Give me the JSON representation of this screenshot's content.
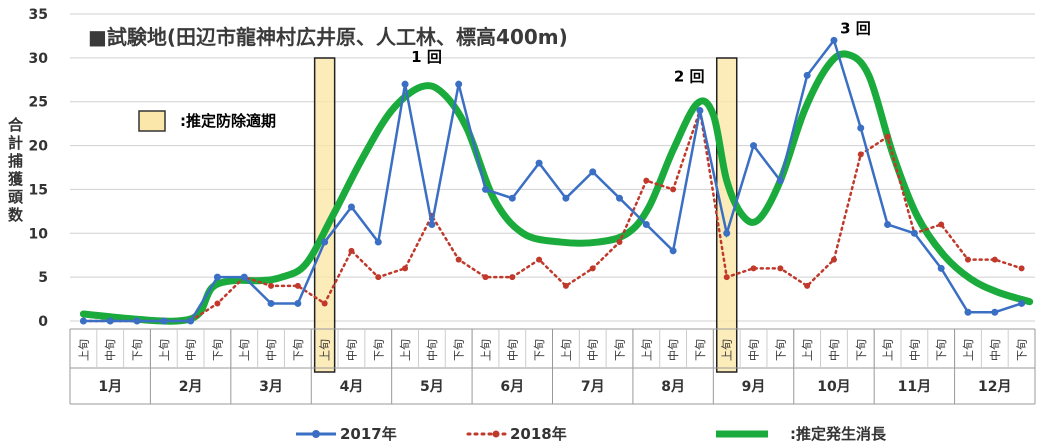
{
  "chart_data": {
    "type": "line",
    "title": "■試験地(田辺市龍神村広井原、人工林、標高400m)",
    "ylabel_chars": [
      "合",
      "計",
      "捕",
      "獲",
      "頭",
      "数"
    ],
    "ylim": [
      0,
      35
    ],
    "yticks": [
      "0",
      "5",
      "10",
      "15",
      "20",
      "25",
      "30",
      "35"
    ],
    "months": [
      "1月",
      "2月",
      "3月",
      "4月",
      "5月",
      "6月",
      "7月",
      "8月",
      "9月",
      "10月",
      "11月",
      "12月"
    ],
    "sub_labels": [
      "上旬",
      "中旬",
      "下旬"
    ],
    "series": [
      {
        "name": "2017年",
        "color": "#3a6fc4",
        "style": "solid-dot",
        "values": [
          0,
          0,
          0,
          0,
          0,
          5,
          5,
          2,
          2,
          9,
          13,
          9,
          27,
          11,
          27,
          15,
          14,
          18,
          14,
          17,
          14,
          11,
          8,
          24,
          10,
          20,
          16,
          28,
          32,
          22,
          11,
          10,
          6,
          1,
          1,
          2
        ]
      },
      {
        "name": "2018年",
        "color": "#c0392b",
        "style": "dotted",
        "values": [
          0,
          0,
          0,
          0,
          0,
          2,
          5,
          4,
          4,
          2,
          8,
          5,
          6,
          12,
          7,
          5,
          5,
          7,
          4,
          6,
          9,
          16,
          15,
          24,
          5,
          6,
          6,
          4,
          7,
          19,
          21,
          10,
          11,
          7,
          7,
          6
        ]
      },
      {
        "name": "推定発生消長",
        "color": "#1aab3c",
        "style": "thick",
        "points": [
          [
            0,
            0.8
          ],
          [
            2,
            0.2
          ],
          [
            3.5,
            0.0
          ],
          [
            4.3,
            0.8
          ],
          [
            4.8,
            3.8
          ],
          [
            5.6,
            4.6
          ],
          [
            6.6,
            4.6
          ],
          [
            7.4,
            5.0
          ],
          [
            8.3,
            6.5
          ],
          [
            9.3,
            12.0
          ],
          [
            10.4,
            18.5
          ],
          [
            11.5,
            24.0
          ],
          [
            12.6,
            26.7
          ],
          [
            13.4,
            26.0
          ],
          [
            14.3,
            22.0
          ],
          [
            15.3,
            14.0
          ],
          [
            16.4,
            10.0
          ],
          [
            17.8,
            9.0
          ],
          [
            19.2,
            9.0
          ],
          [
            20.3,
            10.0
          ],
          [
            21.1,
            13.0
          ],
          [
            22.0,
            19.5
          ],
          [
            22.9,
            24.8
          ],
          [
            23.5,
            23.5
          ],
          [
            24.0,
            16.0
          ],
          [
            24.6,
            12.0
          ],
          [
            25.2,
            11.6
          ],
          [
            26.0,
            16.0
          ],
          [
            26.9,
            24.0
          ],
          [
            27.8,
            29.2
          ],
          [
            28.5,
            30.4
          ],
          [
            29.3,
            28.0
          ],
          [
            30.2,
            19.0
          ],
          [
            31.1,
            12.0
          ],
          [
            32.1,
            7.5
          ],
          [
            33.1,
            4.8
          ],
          [
            34.1,
            3.3
          ],
          [
            35.3,
            2.2
          ]
        ]
      }
    ],
    "spray_periods": [
      {
        "index": 9,
        "label": "推定防除適期"
      },
      {
        "index": 24,
        "label": "推定防除適期"
      }
    ],
    "annotations": [
      {
        "text": "1 回",
        "x": 12.8,
        "y": 29.5
      },
      {
        "text": "2 回",
        "x": 22.6,
        "y": 27.3
      },
      {
        "text": "3 回",
        "x": 28.8,
        "y": 32.8
      }
    ],
    "legend_box_label": ":推定防除適期",
    "legend": [
      {
        "label": "2017年"
      },
      {
        "label": "2018年"
      },
      {
        "label": ":推定発生消長"
      }
    ],
    "grid": true,
    "legend_position": "bottom"
  }
}
